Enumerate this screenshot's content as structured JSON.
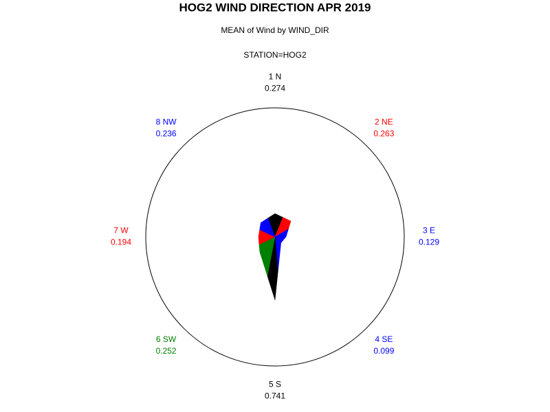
{
  "chart_data": {
    "type": "star",
    "title": "HOG2 WIND DIRECTION APR 2019",
    "subtitle": "MEAN of Wind by WIND_DIR",
    "group_label": "STATION=HOG2",
    "categories": [
      "1 N",
      "2 NE",
      "3 E",
      "4 SE",
      "5 S",
      "6 SW",
      "7 W",
      "8 NW"
    ],
    "values": [
      0.274,
      0.263,
      0.129,
      0.099,
      0.741,
      0.252,
      0.194,
      0.236
    ],
    "colors": [
      "#000000",
      "#ff0000",
      "#0000ff",
      "#0000ff",
      "#000000",
      "#008000",
      "#ff0000",
      "#0000ff"
    ]
  }
}
